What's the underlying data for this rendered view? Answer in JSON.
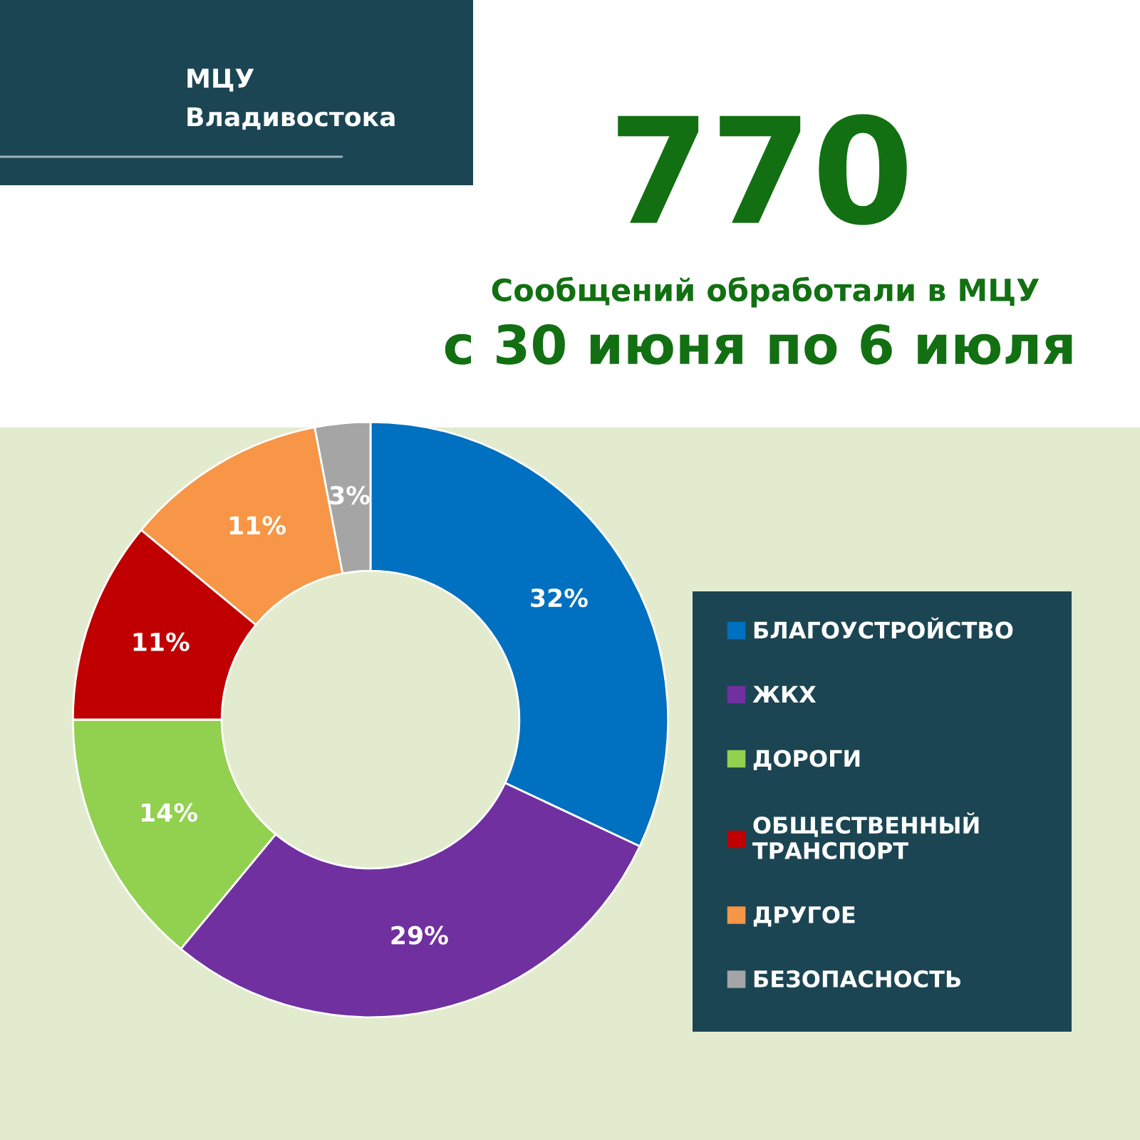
{
  "chart_data": {
    "type": "donut",
    "title": "770",
    "subtitle": "Сообщений обработали в МЦУ",
    "annotations": [
      "с 30 июня по 6 июля",
      "МЦУ\nВладивостока"
    ],
    "categories": [
      "БЛАГОУСТРОЙСТВО",
      "ЖКХ",
      "ДОРОГИ",
      "ОБЩЕСТВЕННЫЙ\nТРАНСПОРТ",
      "ДРУГОЕ",
      "БЕЗОПАСНОСТЬ"
    ],
    "values": [
      32,
      29,
      14,
      11,
      11,
      3
    ],
    "colors": [
      "#0070c0",
      "#7030a0",
      "#92d050",
      "#c00000",
      "#f79646",
      "#a5a5a5"
    ],
    "value_labels": [
      "32%",
      "29%",
      "14%",
      "11%",
      "11%",
      "3%"
    ],
    "legend": "right"
  }
}
